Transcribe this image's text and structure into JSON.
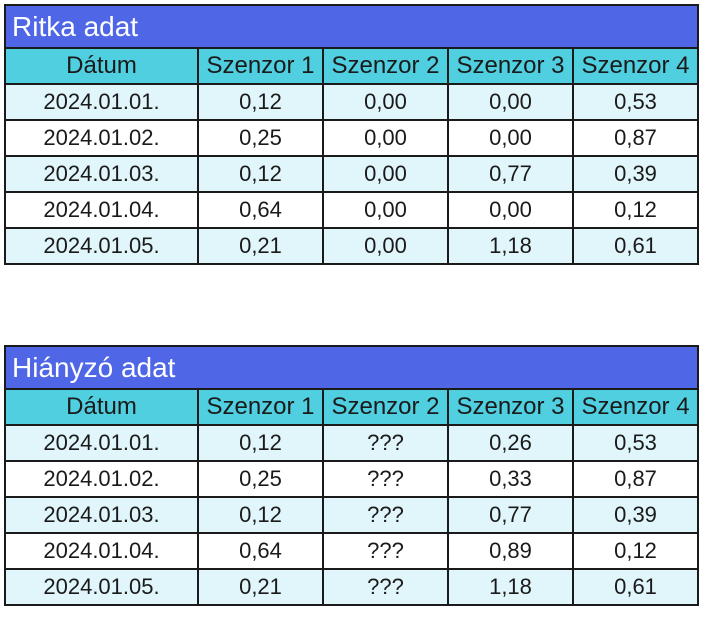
{
  "tables": [
    {
      "title": "Ritka adat",
      "headers": [
        "Dátum",
        "Szenzor 1",
        "Szenzor 2",
        "Szenzor 3",
        "Szenzor 4"
      ],
      "rows": [
        [
          "2024.01.01.",
          "0,12",
          "0,00",
          "0,00",
          "0,53"
        ],
        [
          "2024.01.02.",
          "0,25",
          "0,00",
          "0,00",
          "0,87"
        ],
        [
          "2024.01.03.",
          "0,12",
          "0,00",
          "0,77",
          "0,39"
        ],
        [
          "2024.01.04.",
          "0,64",
          "0,00",
          "0,00",
          "0,12"
        ],
        [
          "2024.01.05.",
          "0,21",
          "0,00",
          "1,18",
          "0,61"
        ]
      ]
    },
    {
      "title": "Hiányzó adat",
      "headers": [
        "Dátum",
        "Szenzor 1",
        "Szenzor 2",
        "Szenzor 3",
        "Szenzor 4"
      ],
      "rows": [
        [
          "2024.01.01.",
          "0,12",
          "???",
          "0,26",
          "0,53"
        ],
        [
          "2024.01.02.",
          "0,25",
          "???",
          "0,33",
          "0,87"
        ],
        [
          "2024.01.03.",
          "0,12",
          "???",
          "0,77",
          "0,39"
        ],
        [
          "2024.01.04.",
          "0,64",
          "???",
          "0,89",
          "0,12"
        ],
        [
          "2024.01.05.",
          "0,21",
          "???",
          "1,18",
          "0,61"
        ]
      ]
    }
  ],
  "colors": {
    "title_bg": "#4f67e6",
    "header_bg": "#4fcfe0",
    "row_alt_bg": "#e0f6fa"
  }
}
